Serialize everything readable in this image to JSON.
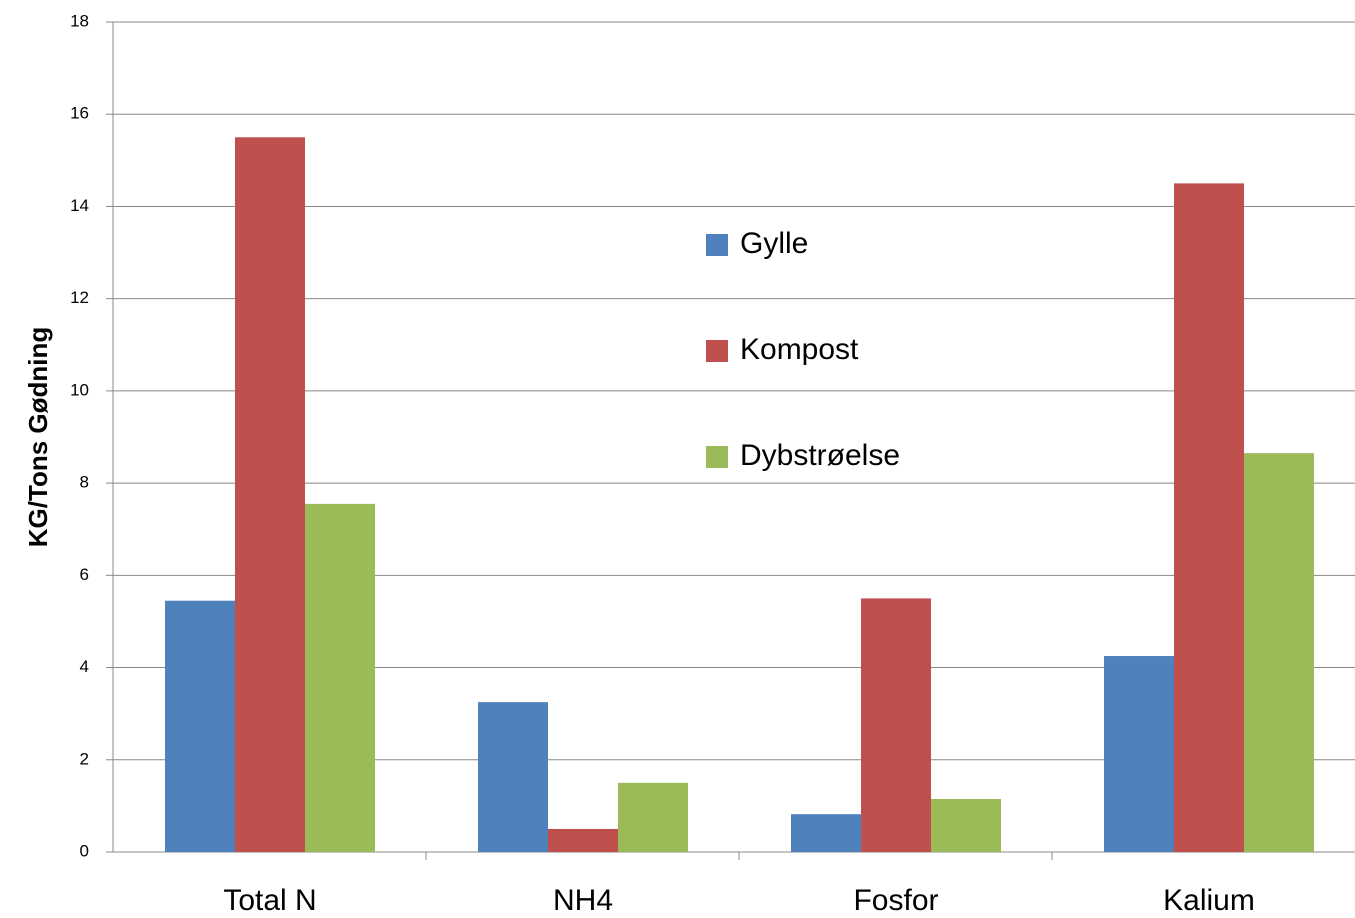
{
  "chart_data": {
    "type": "bar",
    "y_label": "KG/Tons Gødning",
    "categories": [
      "Total N",
      "NH4",
      "Fosfor",
      "Kalium"
    ],
    "series": [
      {
        "name": "Gylle",
        "color": "#4f81bd",
        "values": [
          5.45,
          3.25,
          0.82,
          4.25
        ]
      },
      {
        "name": "Kompost",
        "color": "#c0504d",
        "values": [
          15.5,
          0.5,
          5.5,
          14.5
        ]
      },
      {
        "name": "Dybstrøelse",
        "color": "#9bbb59",
        "values": [
          7.55,
          1.5,
          1.15,
          8.65
        ]
      }
    ],
    "ylim": [
      0,
      18
    ],
    "yticks": [
      0,
      2,
      4,
      6,
      8,
      10,
      12,
      14,
      16,
      18
    ],
    "grid": true,
    "legend": "center"
  }
}
